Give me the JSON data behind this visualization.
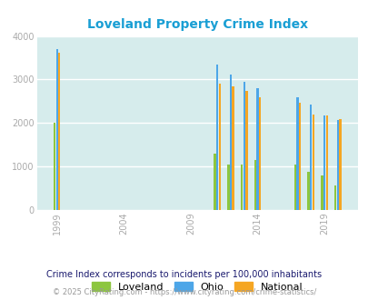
{
  "title": "Loveland Property Crime Index",
  "subtitle": "Crime Index corresponds to incidents per 100,000 inhabitants",
  "footer": "© 2025 CityRating.com - https://www.cityrating.com/crime-statistics/",
  "years": [
    1999,
    2011,
    2012,
    2013,
    2014,
    2017,
    2018,
    2019,
    2020
  ],
  "loveland": [
    2010,
    1300,
    1050,
    1055,
    1150,
    1050,
    880,
    800,
    555
  ],
  "ohio": [
    3700,
    3350,
    3110,
    2950,
    2800,
    2600,
    2420,
    2175,
    2065
  ],
  "national": [
    3620,
    2910,
    2850,
    2730,
    2600,
    2470,
    2200,
    2175,
    2080
  ],
  "color_loveland": "#8dc63f",
  "color_ohio": "#4da6e8",
  "color_national": "#f5a623",
  "bg_color": "#d6ecec",
  "ylim": [
    0,
    4000
  ],
  "yticks": [
    0,
    1000,
    2000,
    3000,
    4000
  ],
  "title_color": "#1a9fd4",
  "subtitle_color": "#1a1a6e",
  "footer_color": "#999999"
}
